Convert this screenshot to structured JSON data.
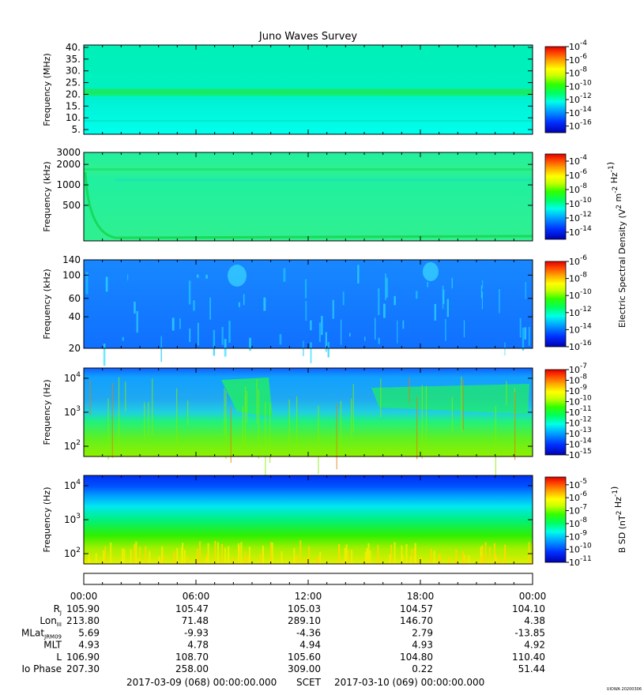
{
  "title": "Juno Waves Survey",
  "credit": "UIOWA 20200306",
  "chart_data": [
    {
      "type": "heatmap",
      "ylabel": "Frequency (MHz)",
      "yscale": "linear",
      "ylim": [
        3,
        41
      ],
      "yticks": [
        5,
        10,
        15,
        20,
        25,
        30,
        35,
        40
      ],
      "ytick_labels": [
        "5.",
        "10.",
        "15.",
        "20.",
        "25.",
        "30.",
        "35.",
        "40."
      ],
      "colorbar": {
        "min_exp": -17,
        "max_exp": -4,
        "ticks": [
          -4,
          -6,
          -8,
          -10,
          -12,
          -14,
          -16
        ]
      }
    },
    {
      "type": "heatmap",
      "ylabel": "Frequency (kHz)",
      "yscale": "log",
      "ylim": [
        150,
        3000
      ],
      "yticks": [
        500,
        1000,
        2000,
        3000
      ],
      "ytick_labels": [
        "500",
        "1000",
        "2000",
        "3000"
      ],
      "colorbar": {
        "min_exp": -15,
        "max_exp": -3,
        "ticks": [
          -4,
          -6,
          -8,
          -10,
          -12,
          -14
        ]
      }
    },
    {
      "type": "heatmap",
      "ylabel": "Frequency (kHz)",
      "yscale": "log",
      "ylim": [
        20,
        140
      ],
      "yticks": [
        20,
        40,
        60,
        100,
        140
      ],
      "ytick_labels": [
        "20",
        "40",
        "60",
        "100",
        "140"
      ],
      "colorbar": {
        "min_exp": -16,
        "max_exp": -6,
        "ticks": [
          -6,
          -8,
          -10,
          -12,
          -14,
          -16
        ]
      }
    },
    {
      "type": "heatmap",
      "ylabel": "Frequency (Hz)",
      "yscale": "log",
      "ylim": [
        50,
        20000
      ],
      "yticks": [
        100,
        1000,
        10000
      ],
      "ytick_labels": [
        "10^2",
        "10^3",
        "10^4"
      ],
      "colorbar": {
        "min_exp": -15,
        "max_exp": -7,
        "ticks": [
          -7,
          -8,
          -9,
          -10,
          -11,
          -12,
          -13,
          -14,
          -15
        ]
      }
    },
    {
      "type": "heatmap",
      "ylabel": "Frequency (Hz)",
      "yscale": "log",
      "ylim": [
        50,
        20000
      ],
      "yticks": [
        100,
        1000,
        10000
      ],
      "ytick_labels": [
        "10^2",
        "10^3",
        "10^4"
      ],
      "colorbar": {
        "min_exp": -11,
        "max_exp": -4.4,
        "ticks": [
          -5,
          -6,
          -7,
          -8,
          -9,
          -10,
          -11
        ]
      }
    }
  ],
  "colorbar_labels": {
    "electric": "Electric Spectral Density (V^2 m^-2 Hz^-1)",
    "magnetic": "B SD (nT^2 Hz^-1)"
  },
  "xaxis": {
    "ticks": [
      "00:00",
      "06:00",
      "12:00",
      "18:00",
      "00:00"
    ],
    "positions_hours": [
      0,
      6,
      12,
      18,
      24
    ]
  },
  "ephemeris": [
    {
      "label": "R",
      "sub": "J",
      "values": [
        "105.90",
        "105.47",
        "105.03",
        "104.57",
        "104.10"
      ]
    },
    {
      "label": "Lon",
      "sub": "III",
      "values": [
        "213.80",
        "71.48",
        "289.10",
        "146.70",
        "4.38"
      ]
    },
    {
      "label": "MLat",
      "sub": "JRM09",
      "values": [
        "5.69",
        "-9.93",
        "-4.36",
        "2.79",
        "-13.85"
      ]
    },
    {
      "label": "MLT",
      "sub": "",
      "values": [
        "4.93",
        "4.78",
        "4.94",
        "4.93",
        "4.92"
      ]
    },
    {
      "label": "L",
      "sub": "",
      "values": [
        "106.90",
        "108.70",
        "105.60",
        "104.80",
        "110.40"
      ]
    },
    {
      "label": "Io Phase",
      "sub": "",
      "values": [
        "207.30",
        "258.00",
        "309.00",
        "0.22",
        "51.44"
      ]
    }
  ],
  "footer": {
    "start": "2017-03-09 (068) 00:00:00.000",
    "scet": "SCET",
    "end": "2017-03-10 (069) 00:00:00.000"
  }
}
